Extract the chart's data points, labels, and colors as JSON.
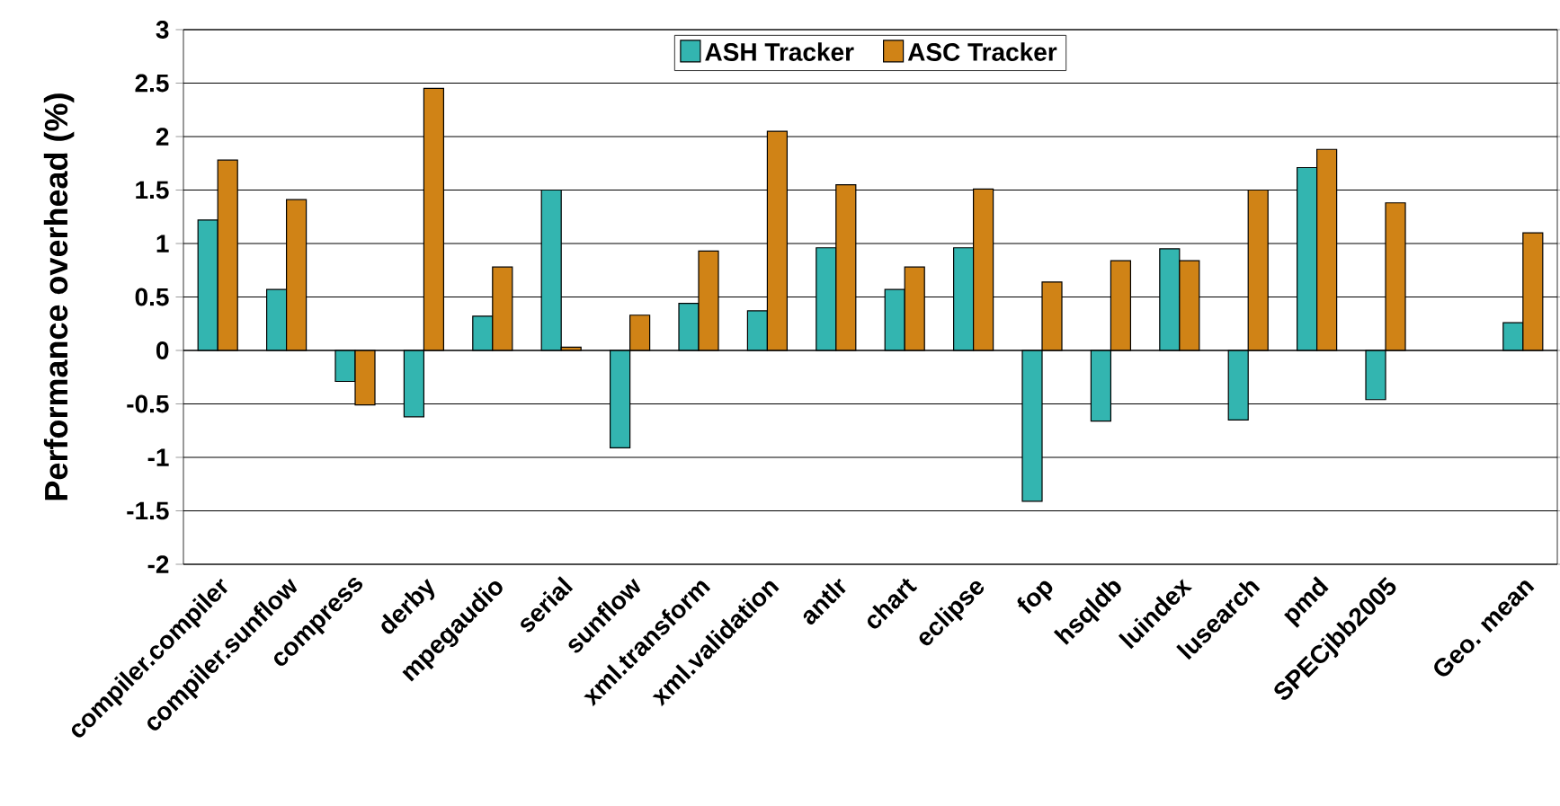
{
  "chart_data": {
    "type": "bar",
    "ylabel": "Performance overhead (%)",
    "categories": [
      "compiler.compiler",
      "compiler.sunflow",
      "compress",
      "derby",
      "mpegaudio",
      "serial",
      "sunflow",
      "xml.transform",
      "xml.validation",
      "antlr",
      "chart",
      "eclipse",
      "fop",
      "hsqldb",
      "luindex",
      "lusearch",
      "pmd",
      "SPECjbb2005",
      null,
      "Geo. mean"
    ],
    "series": [
      {
        "name": "ASH Tracker",
        "color": "#33b5b0",
        "values": [
          1.22,
          0.57,
          -0.29,
          -0.62,
          0.32,
          1.5,
          -0.91,
          0.44,
          0.37,
          0.96,
          0.57,
          0.96,
          -1.41,
          -0.66,
          0.95,
          -0.65,
          1.71,
          -0.46,
          null,
          0.26
        ]
      },
      {
        "name": "ASC Tracker",
        "color": "#d08316",
        "values": [
          1.78,
          1.41,
          -0.51,
          2.45,
          0.78,
          0.03,
          0.33,
          0.93,
          2.05,
          1.55,
          0.78,
          1.51,
          0.64,
          0.84,
          0.84,
          1.5,
          1.88,
          1.38,
          null,
          1.1
        ]
      }
    ],
    "ylim": [
      -2,
      3
    ],
    "yticks": [
      -2,
      -1.5,
      -1,
      -0.5,
      0,
      0.5,
      1,
      1.5,
      2,
      2.5,
      3
    ],
    "grid": "y",
    "legend": "top"
  }
}
